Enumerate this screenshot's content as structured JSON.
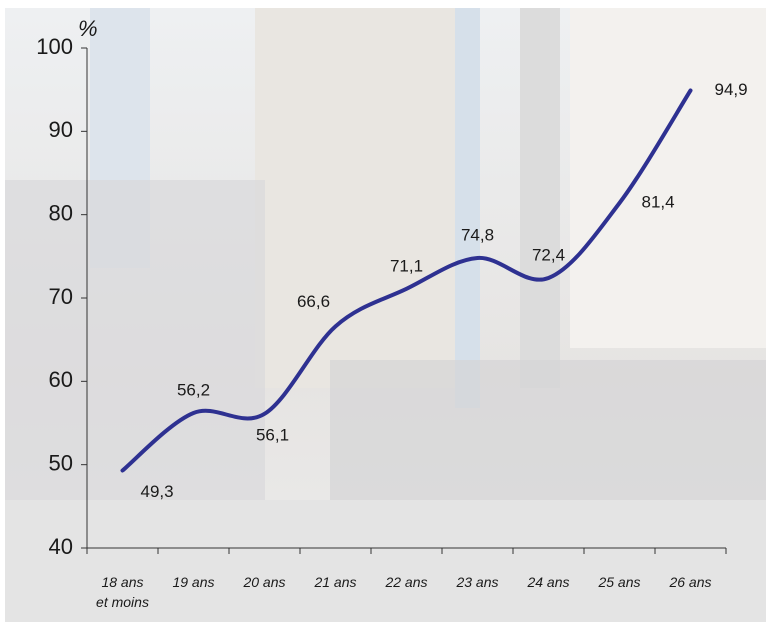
{
  "chart_data": {
    "type": "line",
    "y_axis_label": "%",
    "categories": [
      "18 ans\net moins",
      "19 ans",
      "20 ans",
      "21 ans",
      "22 ans",
      "23 ans",
      "24 ans",
      "25 ans",
      "26 ans"
    ],
    "values": [
      49.3,
      56.2,
      56.1,
      66.6,
      71.1,
      74.8,
      72.4,
      81.4,
      94.9
    ],
    "value_labels": [
      "49,3",
      "56,2",
      "56,1",
      "66,6",
      "71,1",
      "74,8",
      "72,4",
      "81,4",
      "94,9"
    ],
    "color": "#2e3191",
    "ylim": [
      40,
      100
    ],
    "yticks": [
      40,
      50,
      60,
      70,
      80,
      90,
      100
    ]
  }
}
